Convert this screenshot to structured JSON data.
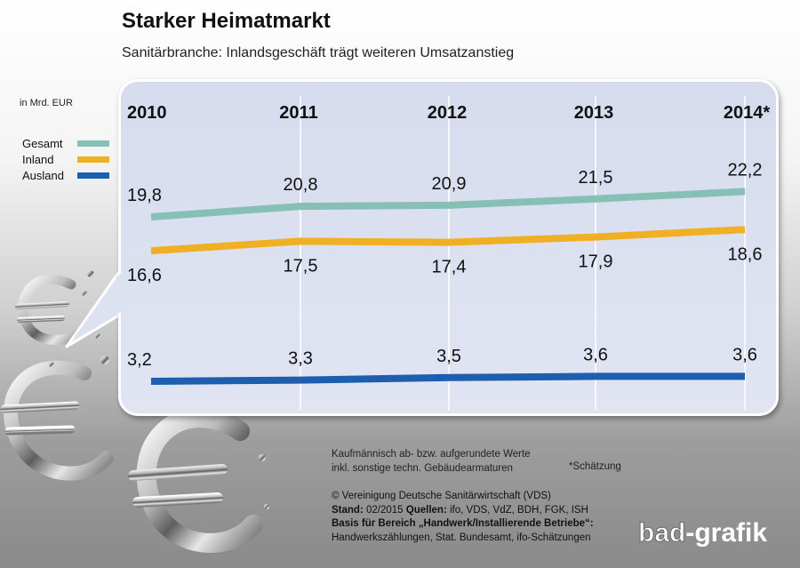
{
  "header": {
    "title": "Starker Heimatmarkt",
    "subtitle": "Sanitärbranche: Inlandsgeschäft trägt weiteren Umsatzanstieg"
  },
  "unit_label": "in Mrd. EUR",
  "legend": [
    {
      "label": "Gesamt",
      "color": "#86bfb4"
    },
    {
      "label": "Inland",
      "color": "#f0b024"
    },
    {
      "label": "Ausland",
      "color": "#1d5fae"
    }
  ],
  "chart_data": {
    "type": "line",
    "categories": [
      "2010",
      "2011",
      "2012",
      "2013",
      "2014*"
    ],
    "unit": "in Mrd. EUR",
    "grid": "vertical",
    "legend_position": "left",
    "series": [
      {
        "name": "Gesamt",
        "color": "#86bfb4",
        "values": [
          19.8,
          20.8,
          20.9,
          21.5,
          22.2
        ],
        "labels": [
          "19,8",
          "20,8",
          "20,9",
          "21,5",
          "22,2"
        ]
      },
      {
        "name": "Inland",
        "color": "#f0b024",
        "values": [
          16.6,
          17.5,
          17.4,
          17.9,
          18.6
        ],
        "labels": [
          "16,6",
          "17,5",
          "17,4",
          "17,9",
          "18,6"
        ]
      },
      {
        "name": "Ausland",
        "color": "#1d5fae",
        "values": [
          3.2,
          3.3,
          3.5,
          3.6,
          3.6
        ],
        "labels": [
          "3,2",
          "3,3",
          "3,5",
          "3,6",
          "3,6"
        ]
      }
    ]
  },
  "notes": {
    "line1": "Kaufmännisch ab- bzw. aufgerundete Werte",
    "line2": "inkl. sonstige techn. Gebäudearmaturen",
    "estimate": "*Schätzung"
  },
  "credits": {
    "copyright": "© Vereinigung Deutsche Sanitärwirtschaft (VDS)",
    "stand_label": "Stand:",
    "stand_value": "02/2015",
    "sources_label": "Quellen:",
    "sources_value": "ifo, VDS, VdZ, BDH, FGK, ISH",
    "basis_label": "Basis für Bereich „Handwerk/Installierende Betriebe“:",
    "basis_value": "Handwerkszählungen, Stat. Bundesamt, ifo-Schätzungen"
  },
  "logo": {
    "part1": "bad",
    "part2": "-grafik"
  }
}
